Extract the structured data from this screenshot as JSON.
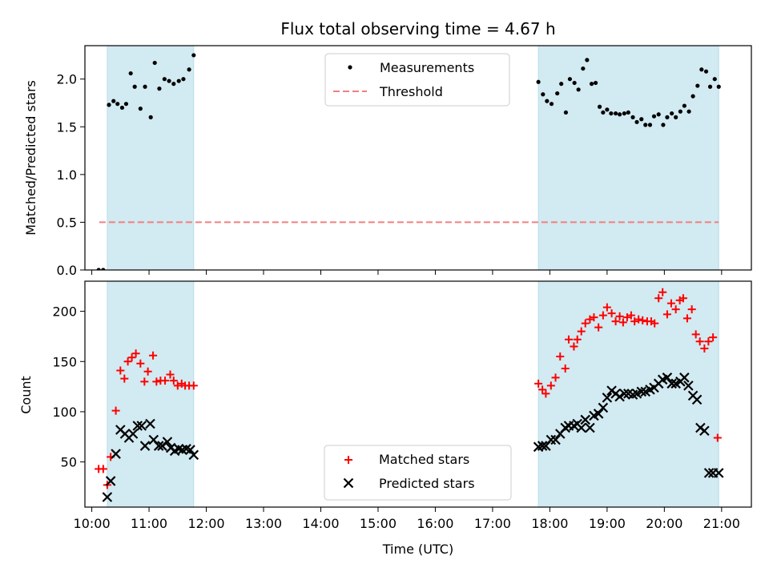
{
  "figure": {
    "title": "Flux total observing time = 4.67 h"
  },
  "colors": {
    "shade": "#add8e6",
    "threshold": "#f08080",
    "matched": "#ff0000",
    "predicted": "#000000",
    "points": "#000000"
  },
  "chart_data": [
    {
      "type": "scatter",
      "name": "ratio-panel",
      "ylabel": "Matched/Predicted stars",
      "xlim": [
        9.88,
        21.52
      ],
      "ylim": [
        0,
        2.35
      ],
      "yticks": [
        0.0,
        0.5,
        1.0,
        1.5,
        2.0
      ],
      "ytick_labels": [
        "0.0",
        "0.5",
        "1.0",
        "1.5",
        "2.0"
      ],
      "shaded_intervals": [
        [
          10.27,
          11.78
        ],
        [
          17.8,
          20.95
        ]
      ],
      "threshold": {
        "label": "Threshold",
        "value": 0.5,
        "x_start": 10.13,
        "x_end": 20.95
      },
      "legend": {
        "position": "top-center",
        "entries": [
          "Measurements",
          "Threshold"
        ]
      },
      "series": [
        {
          "name": "Measurements",
          "x": [
            10.12,
            10.2,
            10.3,
            10.38,
            10.45,
            10.53,
            10.6,
            10.68,
            10.75,
            10.85,
            10.93,
            11.03,
            11.1,
            11.18,
            11.27,
            11.35,
            11.43,
            11.52,
            11.6,
            11.7,
            11.78,
            17.8,
            17.88,
            17.95,
            18.03,
            18.13,
            18.2,
            18.28,
            18.35,
            18.43,
            18.5,
            18.58,
            18.65,
            18.73,
            18.8,
            18.87,
            18.93,
            19.0,
            19.07,
            19.15,
            19.22,
            19.3,
            19.37,
            19.45,
            19.52,
            19.6,
            19.67,
            19.75,
            19.82,
            19.9,
            19.98,
            20.05,
            20.13,
            20.2,
            20.28,
            20.35,
            20.43,
            20.5,
            20.58,
            20.65,
            20.73,
            20.8,
            20.88,
            20.95
          ],
          "y": [
            0.0,
            0.0,
            1.73,
            1.77,
            1.74,
            1.7,
            1.74,
            2.06,
            1.92,
            1.69,
            1.92,
            1.6,
            2.17,
            1.9,
            2.0,
            1.98,
            1.95,
            1.98,
            2.0,
            2.1,
            2.25,
            1.97,
            1.84,
            1.77,
            1.74,
            1.85,
            1.95,
            1.65,
            2.0,
            1.96,
            1.89,
            2.11,
            2.2,
            1.95,
            1.96,
            1.71,
            1.65,
            1.68,
            1.64,
            1.64,
            1.63,
            1.64,
            1.65,
            1.6,
            1.55,
            1.58,
            1.52,
            1.52,
            1.61,
            1.63,
            1.52,
            1.6,
            1.64,
            1.6,
            1.66,
            1.72,
            1.66,
            1.82,
            1.93,
            2.1,
            2.08,
            1.92,
            2.0,
            1.92
          ]
        }
      ]
    },
    {
      "type": "scatter",
      "name": "count-panel",
      "xlabel": "Time (UTC)",
      "ylabel": "Count",
      "xlim": [
        9.88,
        21.52
      ],
      "ylim": [
        5,
        230
      ],
      "yticks": [
        50,
        100,
        150,
        200
      ],
      "ytick_labels": [
        "50",
        "100",
        "150",
        "200"
      ],
      "xticks": [
        10,
        11,
        12,
        13,
        14,
        15,
        16,
        17,
        18,
        19,
        20,
        21
      ],
      "xtick_labels": [
        "10:00",
        "11:00",
        "12:00",
        "13:00",
        "14:00",
        "15:00",
        "16:00",
        "17:00",
        "18:00",
        "19:00",
        "20:00",
        "21:00"
      ],
      "shaded_intervals": [
        [
          10.27,
          11.78
        ],
        [
          17.8,
          20.95
        ]
      ],
      "legend": {
        "position": "bottom-center",
        "entries": [
          "Matched stars",
          "Predicted stars"
        ]
      },
      "series": [
        {
          "name": "Matched stars",
          "marker": "+",
          "x": [
            10.12,
            10.2,
            10.27,
            10.33,
            10.42,
            10.5,
            10.57,
            10.63,
            10.7,
            10.77,
            10.85,
            10.92,
            10.98,
            11.07,
            11.13,
            11.2,
            11.28,
            11.37,
            11.43,
            11.5,
            11.57,
            11.63,
            11.7,
            11.78,
            17.8,
            17.87,
            17.93,
            18.02,
            18.1,
            18.18,
            18.27,
            18.33,
            18.42,
            18.48,
            18.55,
            18.62,
            18.7,
            18.77,
            18.85,
            18.93,
            19.0,
            19.08,
            19.15,
            19.22,
            19.28,
            19.35,
            19.42,
            19.48,
            19.55,
            19.62,
            19.7,
            19.77,
            19.83,
            19.9,
            19.97,
            20.05,
            20.12,
            20.2,
            20.27,
            20.33,
            20.4,
            20.48,
            20.55,
            20.62,
            20.7,
            20.77,
            20.85,
            20.93
          ],
          "y": [
            43,
            43,
            27,
            55,
            101,
            141,
            133,
            150,
            154,
            158,
            148,
            130,
            140,
            156,
            130,
            131,
            131,
            137,
            131,
            126,
            128,
            126,
            126,
            126,
            128,
            122,
            118,
            126,
            134,
            155,
            143,
            172,
            165,
            172,
            180,
            188,
            192,
            194,
            184,
            196,
            204,
            198,
            190,
            195,
            189,
            194,
            196,
            190,
            192,
            191,
            190,
            190,
            188,
            213,
            219,
            197,
            208,
            202,
            211,
            213,
            193,
            202,
            177,
            170,
            163,
            170,
            174,
            74
          ],
          "x_trimmed": true
        },
        {
          "name": "Predicted stars",
          "marker": "x",
          "x": [
            10.27,
            10.33,
            10.42,
            10.5,
            10.58,
            10.65,
            10.72,
            10.8,
            10.87,
            10.93,
            11.02,
            11.08,
            11.17,
            11.23,
            11.32,
            11.38,
            11.45,
            11.52,
            11.58,
            11.65,
            11.72,
            11.78,
            17.8,
            17.87,
            17.93,
            18.02,
            18.1,
            18.18,
            18.27,
            18.33,
            18.42,
            18.48,
            18.55,
            18.62,
            18.7,
            18.77,
            18.85,
            18.93,
            19.0,
            19.08,
            19.15,
            19.22,
            19.3,
            19.37,
            19.45,
            19.52,
            19.6,
            19.67,
            19.75,
            19.82,
            19.9,
            19.97,
            20.05,
            20.13,
            20.2,
            20.28,
            20.35,
            20.42,
            20.5,
            20.57,
            20.63,
            20.7,
            20.78,
            20.85,
            20.95
          ],
          "y": [
            15,
            31,
            58,
            82,
            78,
            74,
            78,
            86,
            86,
            66,
            88,
            72,
            66,
            66,
            70,
            64,
            61,
            63,
            62,
            63,
            62,
            57,
            65,
            66,
            66,
            72,
            72,
            78,
            84,
            86,
            86,
            88,
            84,
            92,
            84,
            96,
            98,
            104,
            114,
            121,
            118,
            115,
            118,
            118,
            117,
            118,
            120,
            120,
            122,
            124,
            128,
            132,
            134,
            128,
            128,
            130,
            134,
            126,
            116,
            112,
            84,
            81,
            39,
            39,
            39
          ]
        }
      ]
    }
  ]
}
